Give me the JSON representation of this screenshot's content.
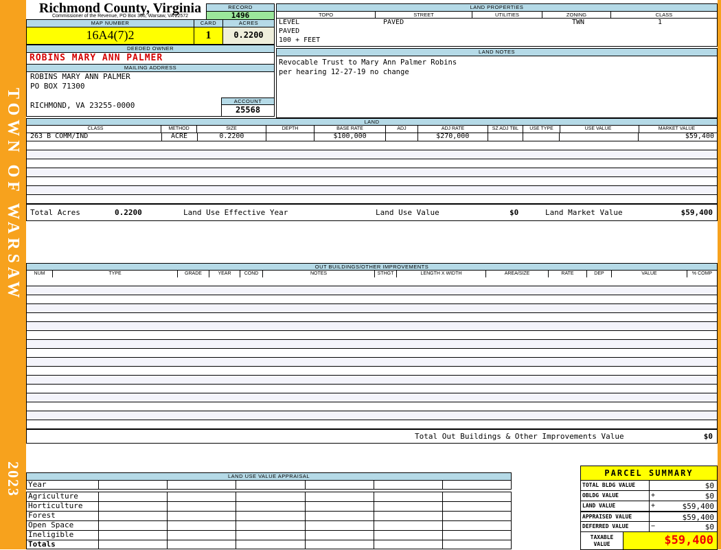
{
  "sidebar": {
    "title": "TOWN OF WARSAW",
    "year": "2023"
  },
  "header": {
    "county_title": "Richmond County, Virginia",
    "commissioner_line": "Commissioner of the Revenue, PO Box 366, Warsaw, VA 22572",
    "record_label": "RECORD",
    "record_value": "1496",
    "map_number_label": "MAP NUMBER",
    "map_number_value": "16A4(7)2",
    "card_label": "CARD",
    "card_value": "1",
    "acres_label": "ACRES",
    "acres_value": "0.2200",
    "deeded_owner_label": "DEEDED OWNER",
    "deeded_owner_value": "ROBINS MARY ANN PALMER",
    "mailing_address_label": "MAILING ADDRESS",
    "mailing_address_lines": [
      "ROBINS MARY ANN PALMER",
      "PO BOX 71300",
      "",
      "RICHMOND, VA 23255-0000"
    ],
    "account_label": "ACCOUNT",
    "account_value": "25568"
  },
  "land_properties": {
    "title": "LAND PROPERTIES",
    "columns": [
      "TOPO",
      "STREET",
      "UTILITIES",
      "ZONING",
      "CLASS"
    ],
    "topo_line1": "LEVEL",
    "topo_line2": "PAVED",
    "topo_line3": "100 + FEET",
    "street_value": "PAVED",
    "utilities_value": "",
    "zoning_value": "TWN",
    "class_value": "1"
  },
  "land_notes": {
    "title": "LAND NOTES",
    "lines": [
      "Revocable Trust to Mary Ann Palmer Robins",
      "per hearing 12-27-19 no change"
    ]
  },
  "land_table": {
    "title": "LAND",
    "columns": [
      "CLASS",
      "METHOD",
      "SIZE",
      "DEPTH",
      "BASE RATE",
      "ADJ",
      "ADJ RATE",
      "SZ ADJ TBL",
      "USE TYPE",
      "USE VALUE",
      "MARKET VALUE"
    ],
    "rows": [
      [
        "263 B COMM/IND",
        "ACRE",
        "0.2200",
        "",
        "$100,000",
        "",
        "$270,000",
        "",
        "",
        "",
        "$59,400"
      ]
    ],
    "totals": {
      "total_acres_label": "Total Acres",
      "total_acres_value": "0.2200",
      "effective_year_label": "Land Use Effective Year",
      "effective_year_value": "",
      "land_use_value_label": "Land Use Value",
      "land_use_value": "$0",
      "land_market_value_label": "Land Market Value",
      "land_market_value": "$59,400"
    }
  },
  "out_buildings": {
    "title": "OUT BUILDINGS/OTHER IMPROVEMENTS",
    "columns": [
      "NUM",
      "TYPE",
      "GRADE",
      "YEAR",
      "COND",
      "NOTES",
      "STHGT",
      "LENGTH X WIDTH",
      "AREA/SIZE",
      "RATE",
      "DEP",
      "VALUE",
      "% COMP"
    ],
    "total_label": "Total Out Buildings & Other Improvements Value",
    "total_value": "$0"
  },
  "land_use_appraisal": {
    "title": "LAND USE VALUE APPRAISAL",
    "row_labels": [
      "Year",
      "Agriculture",
      "Horticulture",
      "Forest",
      "Open Space",
      "Ineligible",
      "Totals"
    ]
  },
  "parcel_summary": {
    "title": "PARCEL SUMMARY",
    "rows": [
      {
        "label": "TOTAL BLDG VALUE",
        "op": "",
        "value": "$0"
      },
      {
        "label": "OBLDG VALUE",
        "op": "+",
        "value": "$0"
      },
      {
        "label": "LAND VALUE",
        "op": "+",
        "value": "$59,400"
      },
      {
        "label": "APPRAISED VALUE",
        "op": "",
        "value": "$59,400"
      },
      {
        "label": "DEFERRED VALUE",
        "op": "−",
        "value": "$0"
      }
    ],
    "taxable_label_line1": "TAXABLE",
    "taxable_label_line2": "VALUE",
    "taxable_value": "$59,400"
  }
}
